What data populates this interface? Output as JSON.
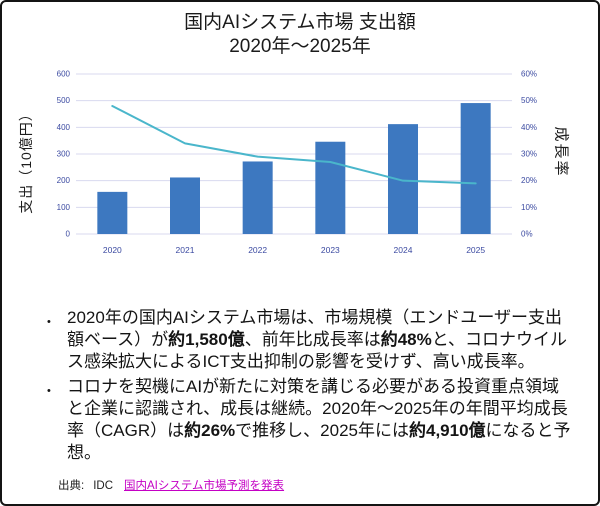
{
  "header": {
    "title_line1": "国内AIシステム市場 支出額",
    "title_line2": "2020年～2025年"
  },
  "chart_data": {
    "type": "bar",
    "subtype": "combo-bar-line",
    "categories": [
      "2020",
      "2021",
      "2022",
      "2023",
      "2024",
      "2025"
    ],
    "series": [
      {
        "name": "支出",
        "type": "bar",
        "axis": "left",
        "values": [
          158,
          212,
          272,
          346,
          412,
          491
        ]
      },
      {
        "name": "成長率",
        "type": "line",
        "axis": "right",
        "values": [
          48,
          34,
          29,
          27,
          20,
          19
        ]
      }
    ],
    "left_axis": {
      "label": "支出（10億円）",
      "min": 0,
      "max": 600,
      "ticks": [
        0,
        100,
        200,
        300,
        400,
        500,
        600
      ]
    },
    "right_axis": {
      "label": "成長率",
      "min": 0,
      "max": 60,
      "ticks": [
        "0%",
        "10%",
        "20%",
        "30%",
        "40%",
        "50%",
        "60%"
      ]
    },
    "grid": true,
    "legend": "none",
    "colors": {
      "bar": "#3d78c0",
      "line": "#4ab6cb",
      "grid": "#d8daef",
      "tick_text": "#3b4aa1"
    }
  },
  "bullet_marker": "•",
  "bullets": [
    {
      "segments": [
        {
          "t": "2020年の国内AIシステム市場は、市場規模（エンドユーザー支出額ベース）が",
          "b": false
        },
        {
          "t": "約1,580億",
          "b": true
        },
        {
          "t": "、前年比成長率は",
          "b": false
        },
        {
          "t": "約48%",
          "b": true
        },
        {
          "t": "と、コロナウイルス感染拡大によるICT支出抑制の影響を受けず、高い成長率。",
          "b": false
        }
      ]
    },
    {
      "segments": [
        {
          "t": "コロナを契機にAIが新たに対策を講じる必要がある投資重点領域と企業に認識され、成長は継続。2020年～2025年の年間平均成長率（CAGR）は",
          "b": false
        },
        {
          "t": "約26%",
          "b": true
        },
        {
          "t": "で推移し、2025年には",
          "b": false
        },
        {
          "t": "約4,910億",
          "b": true
        },
        {
          "t": "になると予想。",
          "b": false
        }
      ]
    }
  ],
  "source": {
    "prefix": "出典:",
    "agency": "IDC",
    "link_text": "国内AIシステム市場予測を発表"
  }
}
